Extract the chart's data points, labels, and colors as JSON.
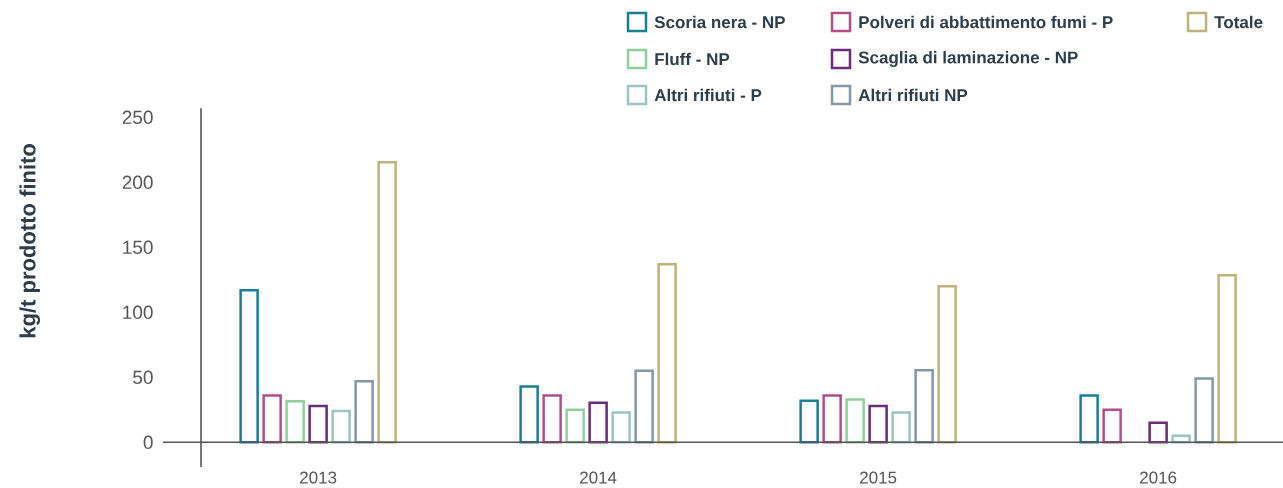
{
  "chart_data": {
    "type": "bar",
    "ylabel": "kg/t prodotto finito",
    "categories": [
      "2013",
      "2014",
      "2015",
      "2016"
    ],
    "series": [
      {
        "name": "Scoria nera - NP",
        "color": "#1a7f96",
        "values": [
          117,
          43,
          32,
          36
        ]
      },
      {
        "name": "Polveri di abbattimento fumi - P",
        "color": "#b04f87",
        "values": [
          36,
          36,
          36,
          25
        ]
      },
      {
        "name": "Fluff - NP",
        "color": "#8fd19e",
        "values": [
          31.5,
          25,
          33,
          null
        ]
      },
      {
        "name": "Scaglia di laminazione - NP",
        "color": "#6b2c7a",
        "values": [
          28,
          30.5,
          28,
          15
        ]
      },
      {
        "name": "Altri rifiuti - P",
        "color": "#9dc3c3",
        "values": [
          24,
          23,
          23,
          5
        ]
      },
      {
        "name": "Altri rifiuti NP",
        "color": "#8497a4",
        "values": [
          47,
          55,
          55.5,
          49
        ]
      },
      {
        "name": "Totale",
        "color": "#bfb27a",
        "values": [
          215.5,
          137,
          120,
          128.5
        ]
      }
    ],
    "ylim": [
      -19,
      257
    ],
    "yticks": [
      0,
      50,
      100,
      150,
      200,
      250
    ],
    "legend": "top right"
  }
}
